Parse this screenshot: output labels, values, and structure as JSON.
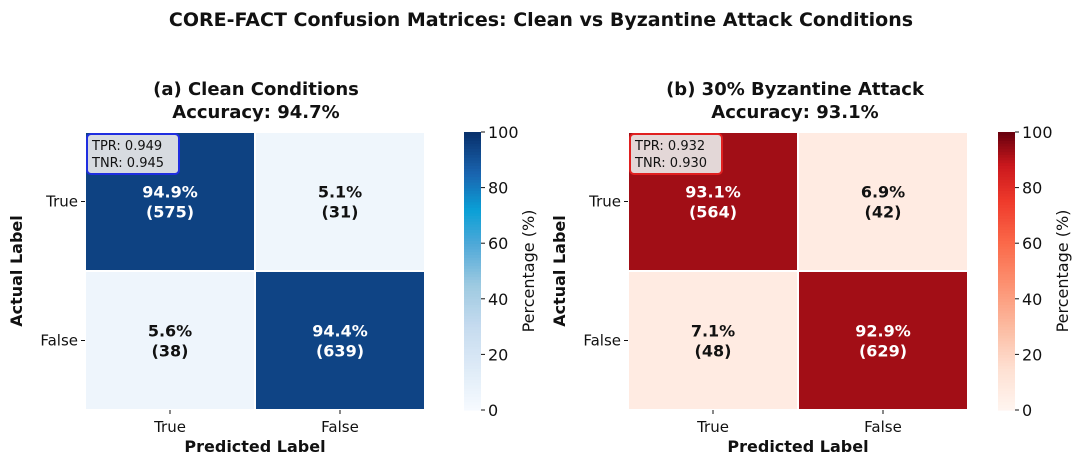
{
  "figure": {
    "title": "CORE-FACT Confusion Matrices: Clean vs Byzantine Attack Conditions"
  },
  "chart_data": [
    {
      "type": "heatmap",
      "title": "(a) Clean Conditions",
      "subtitle": "Accuracy: 94.7%",
      "xlabel": "Predicted Label",
      "ylabel": "Actual Label",
      "x_categories": [
        "True",
        "False"
      ],
      "y_categories": [
        "True",
        "False"
      ],
      "values_percent": [
        [
          94.9,
          5.1
        ],
        [
          5.6,
          94.4
        ]
      ],
      "counts": [
        [
          575,
          31
        ],
        [
          38,
          639
        ]
      ],
      "cell_labels": [
        [
          "94.9%",
          "5.1%"
        ],
        [
          "5.6%",
          "94.4%"
        ]
      ],
      "count_labels": [
        [
          "(575)",
          "(31)"
        ],
        [
          "(38)",
          "(639)"
        ]
      ],
      "stats": [
        "TPR: 0.949",
        "TNR: 0.945"
      ],
      "colorbar": {
        "label": "Percentage (%)",
        "range": [
          0,
          100
        ],
        "ticks": [
          "0",
          "20",
          "40",
          "60",
          "80",
          "100"
        ],
        "colormap": "Blues",
        "low_color": "#f7fbff",
        "high_color": "#08306b"
      },
      "accent_color": "#1f2ee0"
    },
    {
      "type": "heatmap",
      "title": "(b) 30% Byzantine Attack",
      "subtitle": "Accuracy: 93.1%",
      "xlabel": "Predicted Label",
      "ylabel": "Actual Label",
      "x_categories": [
        "True",
        "False"
      ],
      "y_categories": [
        "True",
        "False"
      ],
      "values_percent": [
        [
          93.1,
          6.9
        ],
        [
          7.1,
          92.9
        ]
      ],
      "counts": [
        [
          564,
          42
        ],
        [
          48,
          629
        ]
      ],
      "cell_labels": [
        [
          "93.1%",
          "6.9%"
        ],
        [
          "7.1%",
          "92.9%"
        ]
      ],
      "count_labels": [
        [
          "(564)",
          "(42)"
        ],
        [
          "(48)",
          "(629)"
        ]
      ],
      "stats": [
        "TPR: 0.932",
        "TNR: 0.930"
      ],
      "colorbar": {
        "label": "Percentage (%)",
        "range": [
          0,
          100
        ],
        "ticks": [
          "0",
          "20",
          "40",
          "60",
          "80",
          "100"
        ],
        "colormap": "Reds",
        "low_color": "#fff5f0",
        "high_color": "#67000d"
      },
      "accent_color": "#e02020"
    }
  ]
}
